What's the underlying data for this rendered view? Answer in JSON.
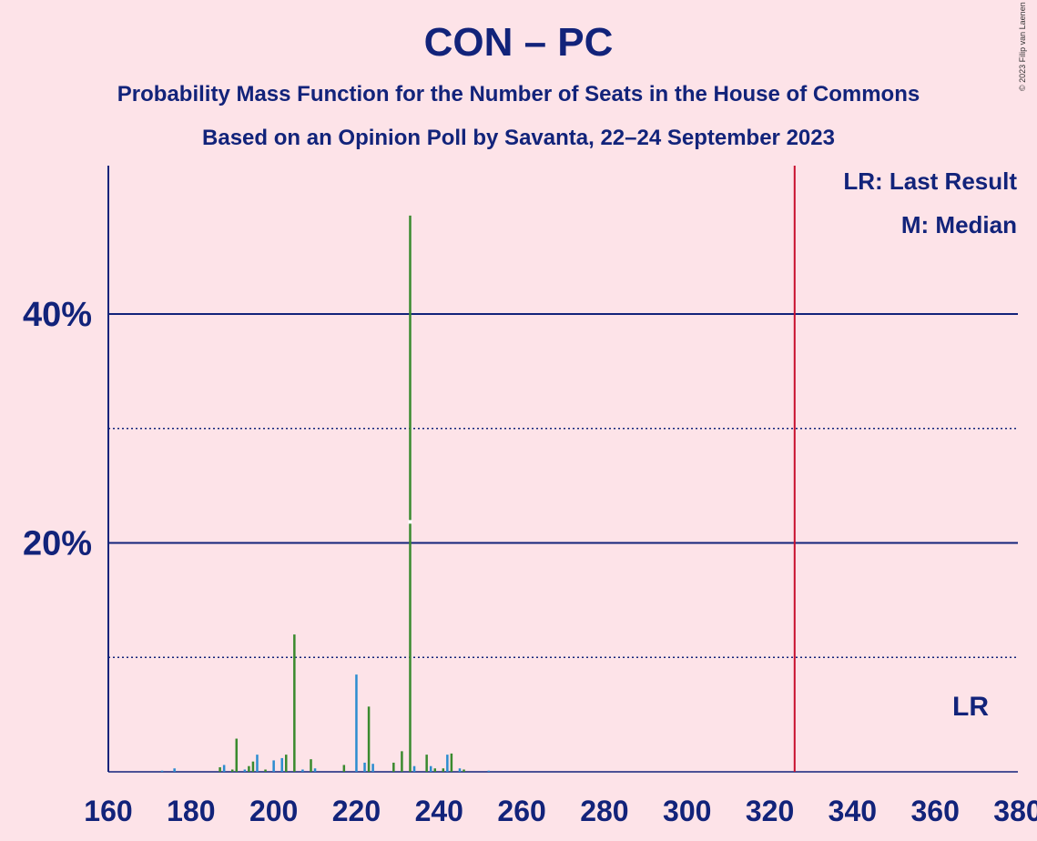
{
  "header": {
    "title": "CON – PC",
    "subtitle1": "Probability Mass Function for the Number of Seats in the House of Commons",
    "subtitle2": "Based on an Opinion Poll by Savanta, 22–24 September 2023",
    "copyright": "© 2023 Filip van Laenen"
  },
  "legend": {
    "lr": "LR: Last Result",
    "m": "M: Median"
  },
  "markers": {
    "lr_label": "LR",
    "last_result_seats": 326,
    "median_seats": 233
  },
  "colors": {
    "background": "#fde3e8",
    "text": "#12237a",
    "bar_green": "#3a8a2e",
    "bar_blue": "#2c8cd0",
    "last_result_line": "#c8102e"
  },
  "chart_data": {
    "type": "bar",
    "title": "CON – PC",
    "xlabel": "",
    "ylabel": "",
    "xlim": [
      160,
      380
    ],
    "ylim": [
      0,
      52
    ],
    "x_ticks": [
      160,
      180,
      200,
      220,
      240,
      260,
      280,
      300,
      320,
      340,
      360,
      380
    ],
    "y_ticks_labeled": [
      "20%",
      "40%"
    ],
    "y_tick_values": [
      20,
      40
    ],
    "gridlines_solid": [
      20,
      40
    ],
    "gridlines_dotted": [
      10,
      30
    ],
    "grid": true,
    "legend_placement": "top-right",
    "bars": [
      {
        "x": 173,
        "value": 0.1,
        "color": "blue"
      },
      {
        "x": 176,
        "value": 0.3,
        "color": "blue"
      },
      {
        "x": 187,
        "value": 0.4,
        "color": "green"
      },
      {
        "x": 188,
        "value": 0.6,
        "color": "blue"
      },
      {
        "x": 190,
        "value": 0.2,
        "color": "green"
      },
      {
        "x": 191,
        "value": 2.9,
        "color": "green"
      },
      {
        "x": 193,
        "value": 0.2,
        "color": "blue"
      },
      {
        "x": 194,
        "value": 0.5,
        "color": "green"
      },
      {
        "x": 195,
        "value": 0.9,
        "color": "green"
      },
      {
        "x": 196,
        "value": 1.5,
        "color": "blue"
      },
      {
        "x": 198,
        "value": 0.2,
        "color": "green"
      },
      {
        "x": 200,
        "value": 1.0,
        "color": "blue"
      },
      {
        "x": 202,
        "value": 1.2,
        "color": "blue"
      },
      {
        "x": 203,
        "value": 1.5,
        "color": "green"
      },
      {
        "x": 205,
        "value": 12.0,
        "color": "green"
      },
      {
        "x": 207,
        "value": 0.2,
        "color": "blue"
      },
      {
        "x": 209,
        "value": 1.1,
        "color": "green"
      },
      {
        "x": 210,
        "value": 0.3,
        "color": "blue"
      },
      {
        "x": 217,
        "value": 0.6,
        "color": "green"
      },
      {
        "x": 220,
        "value": 8.5,
        "color": "blue"
      },
      {
        "x": 222,
        "value": 0.8,
        "color": "blue"
      },
      {
        "x": 223,
        "value": 5.7,
        "color": "green"
      },
      {
        "x": 224,
        "value": 0.7,
        "color": "blue"
      },
      {
        "x": 229,
        "value": 0.8,
        "color": "green"
      },
      {
        "x": 231,
        "value": 1.8,
        "color": "green"
      },
      {
        "x": 233,
        "value": 48.6,
        "color": "green"
      },
      {
        "x": 234,
        "value": 0.5,
        "color": "blue"
      },
      {
        "x": 237,
        "value": 1.5,
        "color": "green"
      },
      {
        "x": 238,
        "value": 0.5,
        "color": "blue"
      },
      {
        "x": 239,
        "value": 0.3,
        "color": "green"
      },
      {
        "x": 241,
        "value": 0.3,
        "color": "green"
      },
      {
        "x": 242,
        "value": 1.5,
        "color": "blue"
      },
      {
        "x": 243,
        "value": 1.6,
        "color": "green"
      },
      {
        "x": 245,
        "value": 0.3,
        "color": "blue"
      },
      {
        "x": 246,
        "value": 0.2,
        "color": "green"
      },
      {
        "x": 252,
        "value": 0.1,
        "color": "blue"
      }
    ]
  }
}
